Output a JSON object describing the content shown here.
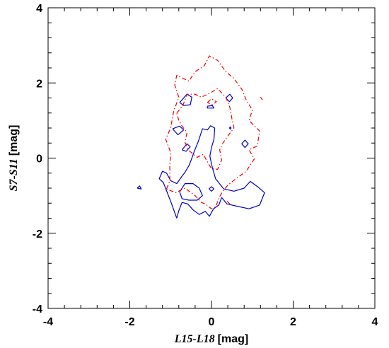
{
  "chart_data": {
    "type": "contour",
    "xlabel": "L15-L18 [mag]",
    "xlabel_name": "L15-L18",
    "xlabel_unit": "[mag]",
    "ylabel": "S7-S11 [mag]",
    "ylabel_name": "S7-S11",
    "ylabel_unit": "[mag]",
    "xlim": [
      -4,
      4
    ],
    "ylim": [
      -4,
      4
    ],
    "x_ticks": [
      -4,
      -2,
      0,
      2,
      4
    ],
    "y_ticks": [
      -4,
      -2,
      0,
      2,
      4
    ],
    "x_tick_labels": [
      "-4",
      "-2",
      "0",
      "2",
      "4"
    ],
    "y_tick_labels": [
      "-4",
      "-2",
      "0",
      "2",
      "4"
    ],
    "minor_ticks_per_major": 5,
    "grid": false,
    "colors": {
      "blue": "#0000cc",
      "red": "#ee0000"
    },
    "series": [
      {
        "color": "#0000cc",
        "style": "solid",
        "contours": [
          [
            [
              -0.85,
              -1.6
            ],
            [
              -1.0,
              -1.15
            ],
            [
              -1.18,
              -0.65
            ],
            [
              -1.28,
              -0.55
            ],
            [
              -1.2,
              -0.35
            ],
            [
              -1.1,
              -0.4
            ],
            [
              -1.0,
              -0.6
            ],
            [
              -0.85,
              -0.68
            ],
            [
              -0.72,
              -0.48
            ],
            [
              -0.65,
              -0.38
            ],
            [
              -0.55,
              -0.2
            ],
            [
              -0.48,
              0.0
            ],
            [
              -0.42,
              0.18
            ],
            [
              -0.32,
              0.45
            ],
            [
              -0.22,
              0.78
            ],
            [
              -0.1,
              0.75
            ],
            [
              -0.02,
              0.86
            ],
            [
              0.08,
              0.8
            ],
            [
              0.06,
              0.5
            ],
            [
              0.0,
              0.28
            ],
            [
              -0.04,
              0.05
            ],
            [
              0.02,
              -0.25
            ],
            [
              0.1,
              -0.55
            ],
            [
              0.3,
              -0.82
            ],
            [
              0.55,
              -0.88
            ],
            [
              0.8,
              -0.8
            ],
            [
              0.95,
              -0.62
            ],
            [
              1.15,
              -0.78
            ],
            [
              1.3,
              -0.92
            ],
            [
              1.18,
              -1.25
            ],
            [
              0.92,
              -1.35
            ],
            [
              0.62,
              -1.28
            ],
            [
              0.38,
              -1.22
            ],
            [
              0.25,
              -1.05
            ],
            [
              0.18,
              -1.25
            ],
            [
              0.05,
              -1.35
            ],
            [
              -0.05,
              -1.55
            ],
            [
              -0.15,
              -1.42
            ],
            [
              -0.3,
              -1.5
            ],
            [
              -0.45,
              -1.38
            ],
            [
              -0.58,
              -1.22
            ],
            [
              -0.72,
              -1.18
            ],
            [
              -0.8,
              -1.4
            ],
            [
              -0.85,
              -1.6
            ]
          ],
          [
            [
              -0.78,
              -0.9
            ],
            [
              -0.65,
              -0.68
            ],
            [
              -0.45,
              -0.68
            ],
            [
              -0.3,
              -0.8
            ],
            [
              -0.22,
              -1.0
            ],
            [
              -0.35,
              -1.12
            ],
            [
              -0.55,
              -1.12
            ],
            [
              -0.72,
              -1.08
            ],
            [
              -0.78,
              -0.9
            ]
          ],
          [
            [
              -0.78,
              1.48
            ],
            [
              -0.6,
              1.7
            ],
            [
              -0.48,
              1.62
            ],
            [
              -0.52,
              1.42
            ],
            [
              -0.68,
              1.4
            ],
            [
              -0.78,
              1.48
            ]
          ],
          [
            [
              -0.95,
              0.78
            ],
            [
              -0.78,
              0.85
            ],
            [
              -0.68,
              0.75
            ],
            [
              -0.82,
              0.62
            ],
            [
              -0.95,
              0.78
            ]
          ],
          [
            [
              -0.72,
              0.22
            ],
            [
              -0.6,
              0.38
            ],
            [
              -0.52,
              0.3
            ],
            [
              -0.62,
              0.18
            ],
            [
              -0.72,
              0.22
            ]
          ],
          [
            [
              -0.1,
              1.38
            ],
            [
              0.02,
              1.4
            ],
            [
              0.06,
              1.33
            ],
            [
              -0.1,
              1.33
            ],
            [
              -0.1,
              1.38
            ]
          ],
          [
            [
              0.35,
              1.6
            ],
            [
              0.45,
              1.7
            ],
            [
              0.52,
              1.6
            ],
            [
              0.44,
              1.5
            ],
            [
              0.35,
              1.6
            ]
          ],
          [
            [
              0.74,
              0.38
            ],
            [
              0.82,
              0.48
            ],
            [
              0.9,
              0.38
            ],
            [
              0.82,
              0.28
            ],
            [
              0.74,
              0.38
            ]
          ],
          [
            [
              -1.82,
              -0.8
            ],
            [
              -1.76,
              -0.74
            ],
            [
              -1.72,
              -0.82
            ],
            [
              -1.82,
              -0.8
            ]
          ],
          [
            [
              -0.06,
              -0.82
            ],
            [
              0.0,
              -0.76
            ],
            [
              0.06,
              -0.82
            ],
            [
              0.0,
              -0.88
            ],
            [
              -0.06,
              -0.82
            ]
          ],
          [
            [
              0.44,
              0.8
            ],
            [
              0.46,
              0.83
            ],
            [
              0.48,
              0.8
            ],
            [
              0.46,
              0.77
            ],
            [
              0.44,
              0.8
            ]
          ]
        ]
      },
      {
        "color": "#ee0000",
        "style": "dash-dot",
        "contours": [
          [
            [
              -1.1,
              -0.82
            ],
            [
              -1.02,
              -0.6
            ],
            [
              -1.02,
              -0.2
            ],
            [
              -1.0,
              0.15
            ],
            [
              -1.12,
              0.5
            ],
            [
              -1.0,
              0.8
            ],
            [
              -0.95,
              1.1
            ],
            [
              -0.92,
              1.28
            ],
            [
              -0.88,
              1.38
            ],
            [
              -0.8,
              1.62
            ],
            [
              -0.9,
              1.95
            ],
            [
              -0.85,
              2.2
            ],
            [
              -0.55,
              2.05
            ],
            [
              -0.4,
              2.3
            ],
            [
              -0.18,
              2.45
            ],
            [
              -0.05,
              2.72
            ],
            [
              0.15,
              2.6
            ],
            [
              0.35,
              2.3
            ],
            [
              0.55,
              2.12
            ],
            [
              0.75,
              1.82
            ],
            [
              0.85,
              1.55
            ],
            [
              1.0,
              1.28
            ],
            [
              0.92,
              1.0
            ],
            [
              1.18,
              0.72
            ],
            [
              1.12,
              0.32
            ],
            [
              0.92,
              0.22
            ],
            [
              1.05,
              -0.02
            ],
            [
              0.85,
              -0.35
            ],
            [
              0.6,
              -0.55
            ],
            [
              0.4,
              -0.72
            ],
            [
              0.28,
              -0.88
            ],
            [
              0.2,
              -1.02
            ],
            [
              0.1,
              -1.3
            ],
            [
              0.0,
              -1.35
            ],
            [
              -0.15,
              -1.22
            ],
            [
              -0.25,
              -1.18
            ],
            [
              -0.4,
              -1.0
            ],
            [
              -0.65,
              -0.8
            ],
            [
              -0.88,
              -0.92
            ],
            [
              -1.1,
              -0.82
            ]
          ],
          [
            [
              -0.85,
              1.2
            ],
            [
              -0.7,
              1.4
            ],
            [
              -0.6,
              1.7
            ],
            [
              -0.4,
              1.7
            ],
            [
              -0.25,
              1.62
            ],
            [
              -0.05,
              1.72
            ],
            [
              0.15,
              1.85
            ],
            [
              0.35,
              1.62
            ],
            [
              0.45,
              1.35
            ],
            [
              0.5,
              1.05
            ],
            [
              0.55,
              0.8
            ],
            [
              0.42,
              0.62
            ],
            [
              0.28,
              0.4
            ],
            [
              0.2,
              0.22
            ],
            [
              0.25,
              -0.05
            ],
            [
              0.15,
              -0.3
            ],
            [
              0.0,
              -0.28
            ],
            [
              -0.1,
              -0.1
            ],
            [
              -0.2,
              0.1
            ],
            [
              -0.35,
              0.02
            ],
            [
              -0.55,
              0.2
            ],
            [
              -0.65,
              0.42
            ],
            [
              -0.6,
              0.68
            ],
            [
              -0.72,
              0.85
            ],
            [
              -0.8,
              1.0
            ],
            [
              -0.85,
              1.2
            ]
          ],
          [
            [
              -0.1,
              1.48
            ],
            [
              0.0,
              1.58
            ],
            [
              0.12,
              1.5
            ],
            [
              0.02,
              1.42
            ],
            [
              -0.1,
              1.48
            ]
          ],
          [
            [
              1.2,
              1.62
            ],
            [
              1.25,
              1.55
            ]
          ],
          [
            [
              0.38,
              -1.15
            ],
            [
              0.45,
              -1.22
            ]
          ]
        ]
      }
    ]
  }
}
